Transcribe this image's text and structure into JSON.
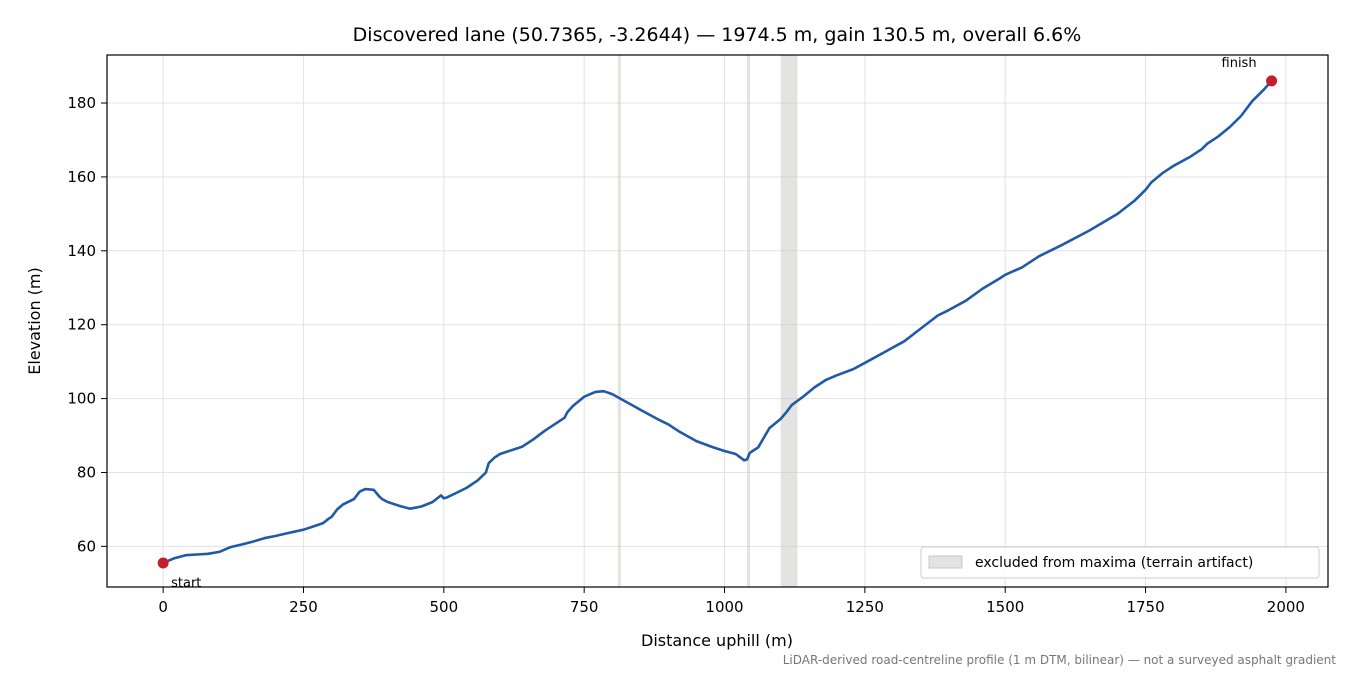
{
  "chart_data": {
    "type": "line",
    "title": "Discovered lane (50.7365, -3.2644) — 1974.5 m, gain 130.5 m, overall 6.6%",
    "xlabel": "Distance uphill (m)",
    "ylabel": "Elevation (m)",
    "xlim": [
      -100,
      2075
    ],
    "ylim": [
      49,
      193
    ],
    "x_ticks": [
      0,
      250,
      500,
      750,
      1000,
      1250,
      1500,
      1750,
      2000
    ],
    "y_ticks": [
      60,
      80,
      100,
      120,
      140,
      160,
      180
    ],
    "grid": true,
    "legend_position": "lower-right",
    "line_color": "#1f5aa8",
    "marker_color": "#c41e2a",
    "band_color": "#c8c8c4",
    "series": [
      {
        "x": [
          0,
          20,
          40,
          60,
          80,
          100,
          120,
          140,
          160,
          180,
          200,
          220,
          250,
          270,
          285,
          295,
          300,
          310,
          320,
          340,
          350,
          360,
          375,
          385,
          390,
          400,
          420,
          440,
          460,
          480,
          495,
          500,
          505,
          520,
          540,
          560,
          575,
          580,
          590,
          600,
          620,
          640,
          660,
          680,
          700,
          715,
          720,
          730,
          750,
          770,
          785,
          800,
          820,
          850,
          880,
          900,
          920,
          950,
          980,
          1000,
          1020,
          1035,
          1040,
          1045,
          1050,
          1060,
          1080,
          1100,
          1110,
          1120,
          1140,
          1160,
          1180,
          1200,
          1230,
          1260,
          1290,
          1320,
          1350,
          1380,
          1400,
          1430,
          1460,
          1490,
          1500,
          1530,
          1560,
          1600,
          1650,
          1700,
          1730,
          1750,
          1760,
          1780,
          1800,
          1830,
          1850,
          1860,
          1880,
          1900,
          1920,
          1940,
          1960,
          1974.5
        ],
        "y": [
          55.5,
          56.8,
          57.6,
          57.8,
          58.0,
          58.5,
          59.8,
          60.5,
          61.3,
          62.2,
          62.8,
          63.5,
          64.5,
          65.5,
          66.3,
          67.5,
          68.0,
          70.0,
          71.3,
          72.8,
          74.8,
          75.5,
          75.3,
          73.5,
          72.8,
          72.0,
          71.0,
          70.2,
          70.8,
          72.0,
          73.8,
          73.0,
          73.2,
          74.3,
          75.8,
          77.8,
          80.0,
          82.5,
          84.0,
          85.0,
          86.0,
          87.0,
          89.0,
          91.3,
          93.3,
          94.8,
          96.3,
          98.0,
          100.5,
          101.8,
          102.0,
          101.2,
          99.5,
          97.0,
          94.5,
          93.0,
          91.0,
          88.5,
          86.8,
          85.8,
          85.0,
          83.3,
          83.5,
          85.3,
          85.8,
          86.8,
          92.0,
          94.5,
          96.3,
          98.3,
          100.5,
          103.0,
          105.0,
          106.3,
          108.0,
          110.5,
          113.0,
          115.5,
          119.0,
          122.5,
          124.0,
          126.5,
          129.8,
          132.5,
          133.5,
          135.5,
          138.5,
          141.5,
          145.5,
          150.0,
          153.5,
          156.5,
          158.5,
          161.0,
          163.0,
          165.5,
          167.5,
          169.0,
          171.0,
          173.5,
          176.5,
          180.5,
          183.5,
          186.0
        ]
      }
    ],
    "excluded_bands": [
      [
        810,
        815
      ],
      [
        1040,
        1045
      ],
      [
        1100,
        1130
      ]
    ],
    "markers": [
      {
        "label": "start",
        "x": 0,
        "y": 55.5
      },
      {
        "label": "finish",
        "x": 1974.5,
        "y": 186.0
      }
    ],
    "legend": {
      "label": "excluded from maxima (terrain artifact)"
    },
    "footnote": "LiDAR-derived road-centreline profile (1 m DTM, bilinear) — not a surveyed asphalt gradient"
  }
}
